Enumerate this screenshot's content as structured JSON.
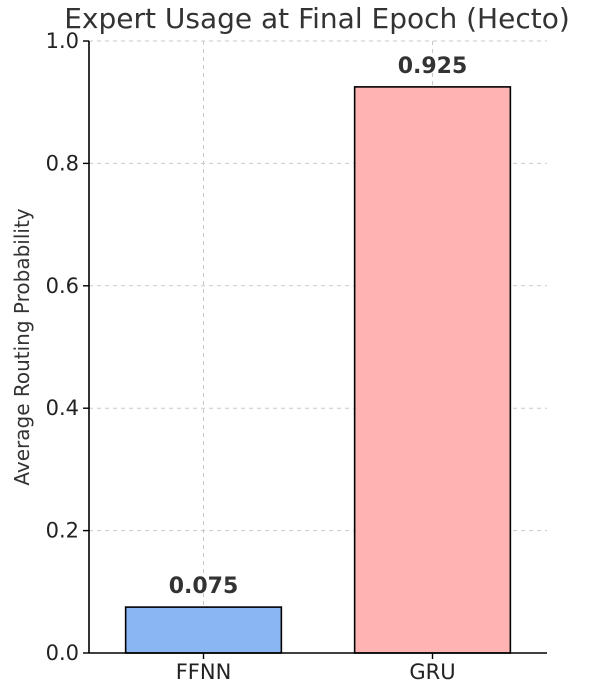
{
  "chart_data": {
    "type": "bar",
    "title": "Expert Usage at Final Epoch (Hecto)",
    "xlabel": "",
    "ylabel": "Average Routing Probability",
    "categories": [
      "FFNN",
      "GRU"
    ],
    "values": [
      0.075,
      0.925
    ],
    "value_labels": [
      "0.075",
      "0.925"
    ],
    "colors": [
      "#8ab6f4",
      "#ffb3b3"
    ],
    "ylim": [
      0.0,
      1.0
    ],
    "yticks": [
      0.0,
      0.2,
      0.4,
      0.6,
      0.8,
      1.0
    ],
    "ytick_labels": [
      "0.0",
      "0.2",
      "0.4",
      "0.6",
      "0.8",
      "1.0"
    ],
    "grid": true,
    "legend": "none"
  }
}
